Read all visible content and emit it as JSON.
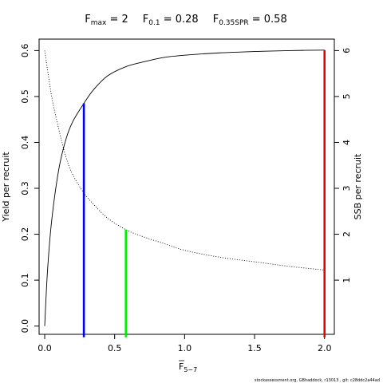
{
  "title": {
    "fmax_prefix": "F",
    "fmax_sub": "max",
    "fmax_value": " = 2",
    "f01_prefix": "F",
    "f01_sub": "0.1",
    "f01_value": " = 0.28",
    "fspr_prefix": "F",
    "fspr_sub": "0.35SPR",
    "fspr_value": " = 0.58"
  },
  "footer": "stockassessment.org, GBhaddock, r13013 , git: c28ddc2a44ad",
  "chart_data": {
    "type": "line",
    "x_axis": {
      "label_main": "F",
      "label_sub": "5−7",
      "overline": true,
      "range": [
        -0.04,
        2.07
      ],
      "ticks": [
        0.0,
        0.5,
        1.0,
        1.5,
        2.0
      ],
      "tick_labels": [
        "0.0",
        "0.5",
        "1.0",
        "1.5",
        "2.0"
      ]
    },
    "y_axis_left": {
      "label": "Yield per recruit",
      "range": [
        -0.018,
        0.625
      ],
      "ticks": [
        0.0,
        0.1,
        0.2,
        0.3,
        0.4,
        0.5,
        0.6
      ],
      "tick_labels": [
        "0.0",
        "0.1",
        "0.2",
        "0.3",
        "0.4",
        "0.5",
        "0.6"
      ]
    },
    "y_axis_right": {
      "label": "SSB per recruit",
      "range": [
        -0.18,
        6.25
      ],
      "ticks": [
        1,
        2,
        3,
        4,
        5,
        6
      ],
      "tick_labels": [
        "1",
        "2",
        "3",
        "4",
        "5",
        "6"
      ]
    },
    "series": [
      {
        "line_style": "solid",
        "axis": "left",
        "x": [
          0.0,
          0.02,
          0.05,
          0.1,
          0.15,
          0.2,
          0.28,
          0.35,
          0.45,
          0.58,
          0.7,
          0.85,
          1.0,
          1.25,
          1.5,
          1.75,
          2.0
        ],
        "y": [
          0.0,
          0.12,
          0.23,
          0.34,
          0.405,
          0.445,
          0.485,
          0.515,
          0.545,
          0.565,
          0.575,
          0.585,
          0.59,
          0.595,
          0.598,
          0.6,
          0.601
        ]
      },
      {
        "line_style": "dotted",
        "axis": "right",
        "x": [
          0.0,
          0.05,
          0.1,
          0.15,
          0.2,
          0.28,
          0.35,
          0.45,
          0.58,
          0.7,
          0.85,
          1.0,
          1.25,
          1.5,
          1.75,
          2.0
        ],
        "y": [
          6.0,
          5.0,
          4.3,
          3.7,
          3.3,
          2.9,
          2.65,
          2.35,
          2.1,
          1.95,
          1.8,
          1.65,
          1.5,
          1.4,
          1.3,
          1.22
        ]
      }
    ],
    "reference_lines": [
      {
        "name": "F0.1",
        "x": 0.28,
        "y_top": 0.485,
        "color": "#0000ff"
      },
      {
        "name": "F0.35SPR",
        "x": 0.58,
        "y_top": 0.21,
        "color": "#00ee00"
      },
      {
        "name": "Fmax",
        "x": 2.0,
        "y_top": 0.601,
        "color": "#ee0000"
      }
    ]
  }
}
